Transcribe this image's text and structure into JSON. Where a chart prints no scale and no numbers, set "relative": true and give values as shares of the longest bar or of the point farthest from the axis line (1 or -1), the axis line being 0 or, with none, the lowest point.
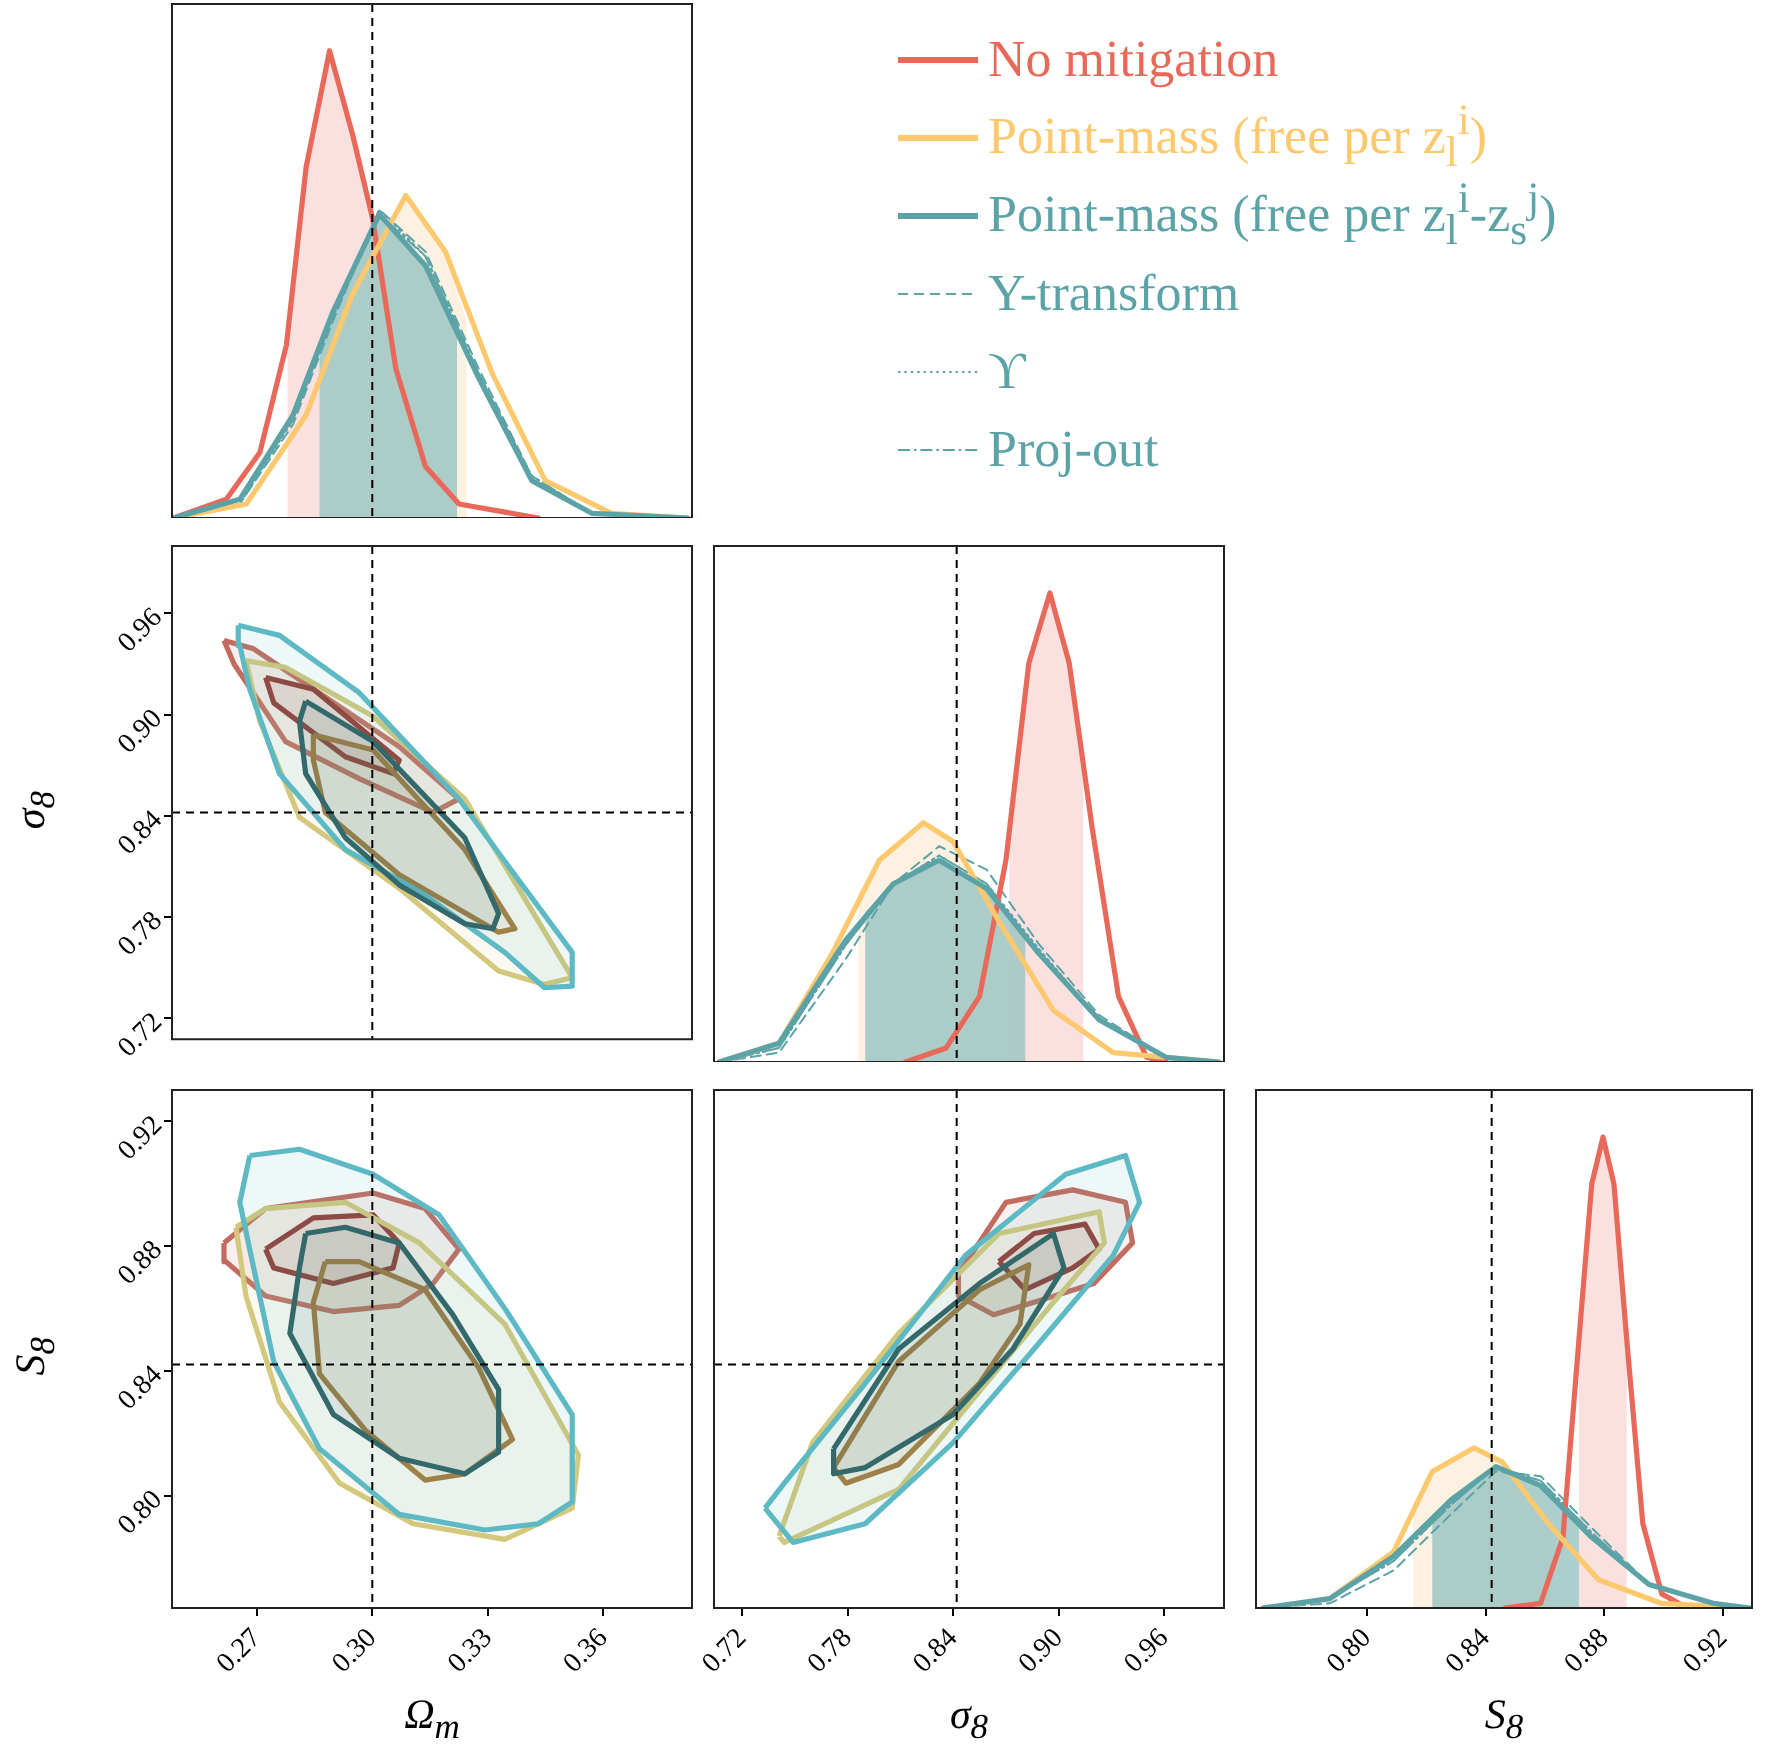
{
  "chart_data": [
    {
      "type": "line",
      "relative": true,
      "xlim": [
        0.248,
        0.383
      ],
      "tick_labels": false,
      "legend": "right",
      "ref_lines": [
        {
          "axis": "x",
          "value": 0.3
        }
      ],
      "series": [
        {
          "type": "area",
          "color": "#f9dcda",
          "x": [
            0.278,
            0.278,
            0.2828,
            0.2889,
            0.2949,
            0.3001,
            0.3001
          ],
          "values": [
            0,
            0.38,
            0.75,
            1,
            0.82,
            0.64,
            0
          ]
        },
        {
          "type": "area",
          "color": "#fdf0dc",
          "x": [
            0.2872,
            0.2872,
            0.2949,
            0.3087,
            0.319,
            0.3245,
            0.3245
          ],
          "values": [
            0,
            0.36,
            0.48,
            0.69,
            0.57,
            0.42,
            0
          ]
        },
        {
          "type": "area",
          "color": "#9dc6c3",
          "x": [
            0.2863,
            0.2863,
            0.2897,
            0.3018,
            0.3138,
            0.322,
            0.322
          ],
          "values": [
            0,
            0.38,
            0.44,
            0.65,
            0.54,
            0.39,
            0
          ]
        },
        {
          "type": "line",
          "name": "No mitigation",
          "color": "#e8695a",
          "x": [
            0.2484,
            0.2621,
            0.2708,
            0.2777,
            0.2828,
            0.2889,
            0.2949,
            0.3001,
            0.3061,
            0.3138,
            0.3225,
            0.3431
          ],
          "values": [
            0,
            0.04,
            0.14,
            0.37,
            0.75,
            1,
            0.82,
            0.64,
            0.32,
            0.11,
            0.03,
            0
          ]
        },
        {
          "type": "line",
          "name": "Point-mass (free per z$_{l}$$^{i}$)",
          "color": "#fdc86e",
          "x": [
            0.2484,
            0.2673,
            0.2828,
            0.2949,
            0.3087,
            0.319,
            0.3311,
            0.3449,
            0.3621,
            0.3819
          ],
          "values": [
            0,
            0.03,
            0.22,
            0.48,
            0.69,
            0.57,
            0.31,
            0.08,
            0.01,
            0
          ]
        },
        {
          "type": "line",
          "name": "Point-mass (free per z$_{l}$$^{i}$-z$_{s}$$^{j}$)",
          "color": "#5ba3a6",
          "x": [
            0.2484,
            0.2656,
            0.2794,
            0.2897,
            0.3018,
            0.3138,
            0.3276,
            0.3414,
            0.357,
            0.3819
          ],
          "values": [
            0,
            0.04,
            0.22,
            0.44,
            0.65,
            0.54,
            0.3,
            0.08,
            0.01,
            0
          ]
        },
        {
          "type": "line",
          "name": "Y-transform",
          "color": "#5ba3a6",
          "line_style": "dashed",
          "x": [
            0.2484,
            0.2656,
            0.2794,
            0.2897,
            0.3018,
            0.3138,
            0.3276,
            0.3414,
            0.357,
            0.3819
          ],
          "values": [
            0,
            0.03,
            0.2,
            0.42,
            0.66,
            0.57,
            0.32,
            0.09,
            0.01,
            0
          ]
        },
        {
          "type": "line",
          "name": "ϒ",
          "color": "#5ba3a6",
          "line_style": "dotted",
          "x": [
            0.2484,
            0.2656,
            0.2794,
            0.2897,
            0.3018,
            0.3138,
            0.3276,
            0.3414,
            0.357,
            0.3819
          ],
          "values": [
            0,
            0.03,
            0.21,
            0.43,
            0.66,
            0.56,
            0.31,
            0.09,
            0.01,
            0
          ]
        },
        {
          "type": "line",
          "name": "Proj-out",
          "color": "#5ba3a6",
          "line_style": "dashdot",
          "x": [
            0.2484,
            0.2656,
            0.2794,
            0.2897,
            0.3018,
            0.3138,
            0.3276,
            0.3414,
            0.357,
            0.3819
          ],
          "values": [
            0,
            0.04,
            0.21,
            0.43,
            0.65,
            0.56,
            0.31,
            0.08,
            0.01,
            0
          ]
        }
      ]
    },
    {
      "type": "line",
      "xlim": [
        0.248,
        0.383
      ],
      "ylim": [
        0.7075,
        1.0
      ],
      "yticks": [
        0.72,
        0.78,
        0.84,
        {
          "value": 0.9,
          "label": "0.90"
        },
        0.96
      ],
      "tick_labels": "y",
      "ylabel": "σ$_{8}$",
      "ref_lines": [
        {
          "axis": "x",
          "value": 0.3
        },
        {
          "axis": "y",
          "value": 0.842
        }
      ],
      "series": [
        {
          "type": "area",
          "color": "#c46a5e",
          "x": [
            0.2615,
            0.2692,
            0.307,
            0.3225,
            0.3158,
            0.2966,
            0.2775,
            0.2641,
            0.2615
          ],
          "values": [
            0.944,
            0.939,
            0.881,
            0.85,
            0.842,
            0.862,
            0.884,
            0.93,
            0.944
          ]
        },
        {
          "type": "area",
          "color": "#8e2f2f",
          "x": [
            0.2723,
            0.2847,
            0.307,
            0.3054,
            0.293,
            0.2744,
            0.2723
          ],
          "values": [
            0.922,
            0.915,
            0.873,
            0.865,
            0.875,
            0.907,
            0.922
          ]
        },
        {
          "type": "area",
          "color": "#d3c87c",
          "x": [
            0.2672,
            0.2775,
            0.3002,
            0.324,
            0.3519,
            0.3447,
            0.3328,
            0.307,
            0.2811,
            0.2708,
            0.2672
          ],
          "values": [
            0.932,
            0.928,
            0.899,
            0.85,
            0.744,
            0.74,
            0.748,
            0.797,
            0.839,
            0.896,
            0.932
          ]
        },
        {
          "type": "area",
          "color": "#a67b3c",
          "x": [
            0.2847,
            0.3002,
            0.324,
            0.337,
            0.3328,
            0.307,
            0.2878,
            0.2847,
            0.2847
          ],
          "values": [
            0.888,
            0.879,
            0.82,
            0.773,
            0.771,
            0.805,
            0.842,
            0.873,
            0.888
          ]
        },
        {
          "type": "area",
          "color": "#5db9c3",
          "x": [
            0.2652,
            0.2759,
            0.2966,
            0.3225,
            0.3344,
            0.3519,
            0.3519,
            0.3447,
            0.3344,
            0.3137,
            0.293,
            0.2759,
            0.2682,
            0.2656,
            0.2652
          ],
          "values": [
            0.953,
            0.947,
            0.913,
            0.85,
            0.813,
            0.759,
            0.739,
            0.738,
            0.759,
            0.793,
            0.82,
            0.865,
            0.915,
            0.941,
            0.953
          ]
        },
        {
          "type": "area",
          "color": "#33696b",
          "x": [
            0.2827,
            0.3002,
            0.324,
            0.3328,
            0.3313,
            0.324,
            0.307,
            0.293,
            0.2827,
            0.2811,
            0.2827
          ],
          "values": [
            0.908,
            0.884,
            0.827,
            0.782,
            0.773,
            0.776,
            0.799,
            0.827,
            0.865,
            0.896,
            0.908
          ]
        }
      ]
    },
    {
      "type": "line",
      "relative": true,
      "xlim": [
        0.704,
        0.994
      ],
      "tick_labels": false,
      "ref_lines": [
        {
          "axis": "x",
          "value": 0.842
        }
      ],
      "series": [
        {
          "type": "area",
          "color": "#f9dcda",
          "x": [
            0.872,
            0.872,
            0.883,
            0.895,
            0.906,
            0.914,
            0.914
          ],
          "values": [
            0,
            0.5,
            0.85,
            1,
            0.85,
            0.6,
            0
          ]
        },
        {
          "type": "area",
          "color": "#fdf0dc",
          "x": [
            0.786,
            0.786,
            0.798,
            0.823,
            0.84,
            0.866,
            0.872,
            0.872
          ],
          "values": [
            0,
            0.36,
            0.43,
            0.51,
            0.47,
            0.3,
            0.27,
            0
          ]
        },
        {
          "type": "area",
          "color": "#9dc6c3",
          "x": [
            0.79,
            0.79,
            0.806,
            0.832,
            0.859,
            0.881,
            0.881
          ],
          "values": [
            0,
            0.32,
            0.38,
            0.43,
            0.37,
            0.27,
            0
          ]
        },
        {
          "type": "line",
          "color": "#e8695a",
          "x": [
            0.813,
            0.836,
            0.855,
            0.87,
            0.883,
            0.895,
            0.906,
            0.919,
            0.934,
            0.95,
            0.961
          ],
          "values": [
            0,
            0.03,
            0.14,
            0.43,
            0.85,
            1,
            0.85,
            0.5,
            0.14,
            0.01,
            0
          ]
        },
        {
          "type": "line",
          "color": "#fdc86e",
          "x": [
            0.707,
            0.741,
            0.771,
            0.798,
            0.823,
            0.84,
            0.866,
            0.897,
            0.931,
            0.991
          ],
          "values": [
            0,
            0.04,
            0.23,
            0.43,
            0.51,
            0.47,
            0.3,
            0.11,
            0.02,
            0
          ]
        },
        {
          "type": "line",
          "color": "#5ba3a6",
          "x": [
            0.707,
            0.741,
            0.779,
            0.806,
            0.832,
            0.859,
            0.889,
            0.923,
            0.961,
            0.991
          ],
          "values": [
            0,
            0.04,
            0.26,
            0.38,
            0.43,
            0.37,
            0.23,
            0.09,
            0.01,
            0
          ]
        },
        {
          "type": "line",
          "color": "#5ba3a6",
          "line_style": "dashed",
          "x": [
            0.707,
            0.741,
            0.779,
            0.806,
            0.832,
            0.859,
            0.889,
            0.923,
            0.961,
            0.991
          ],
          "values": [
            0,
            0.02,
            0.22,
            0.38,
            0.46,
            0.41,
            0.25,
            0.1,
            0.01,
            0
          ]
        },
        {
          "type": "line",
          "color": "#5ba3a6",
          "line_style": "dotted",
          "x": [
            0.707,
            0.741,
            0.779,
            0.806,
            0.832,
            0.859,
            0.889,
            0.923,
            0.961,
            0.991
          ],
          "values": [
            0,
            0.03,
            0.25,
            0.38,
            0.44,
            0.38,
            0.24,
            0.09,
            0.01,
            0
          ]
        },
        {
          "type": "line",
          "color": "#5ba3a6",
          "line_style": "dashdot",
          "x": [
            0.707,
            0.741,
            0.779,
            0.806,
            0.832,
            0.859,
            0.889,
            0.923,
            0.961,
            0.991
          ],
          "values": [
            0,
            0.03,
            0.25,
            0.38,
            0.44,
            0.38,
            0.23,
            0.09,
            0.01,
            0
          ]
        }
      ]
    },
    {
      "type": "line",
      "xlim": [
        0.248,
        0.383
      ],
      "xticks": [
        0.27,
        {
          "value": 0.3,
          "label": "0.30"
        },
        0.33,
        0.36
      ],
      "ylim": [
        0.764,
        0.93
      ],
      "yticks": [
        {
          "value": 0.8,
          "label": "0.80"
        },
        0.84,
        0.88,
        0.92
      ],
      "xlabel": "Ω$_{m}$",
      "ylabel": "S$_{8}$",
      "ref_lines": [
        {
          "axis": "x",
          "value": 0.3
        },
        {
          "axis": "y",
          "value": 0.842
        }
      ],
      "series": [
        {
          "type": "area",
          "color": "#c46a5e",
          "x": [
            0.2615,
            0.2723,
            0.3002,
            0.3137,
            0.3225,
            0.3158,
            0.307,
            0.2899,
            0.2723,
            0.262,
            0.2615
          ],
          "values": [
            0.881,
            0.892,
            0.897,
            0.892,
            0.879,
            0.868,
            0.861,
            0.859,
            0.864,
            0.875,
            0.881
          ]
        },
        {
          "type": "area",
          "color": "#8e2f2f",
          "x": [
            0.2723,
            0.2847,
            0.3002,
            0.307,
            0.3054,
            0.2899,
            0.2744,
            0.2723
          ],
          "values": [
            0.879,
            0.889,
            0.89,
            0.881,
            0.873,
            0.868,
            0.873,
            0.879
          ]
        },
        {
          "type": "area",
          "color": "#d3c87c",
          "x": [
            0.2646,
            0.2723,
            0.293,
            0.3122,
            0.3344,
            0.3535,
            0.3519,
            0.3344,
            0.3106,
            0.2915,
            0.2759,
            0.2672,
            0.2646
          ],
          "values": [
            0.886,
            0.892,
            0.894,
            0.881,
            0.855,
            0.813,
            0.796,
            0.786,
            0.791,
            0.804,
            0.83,
            0.864,
            0.886
          ]
        },
        {
          "type": "area",
          "color": "#a67b3c",
          "x": [
            0.2878,
            0.2966,
            0.3137,
            0.3276,
            0.3364,
            0.324,
            0.3137,
            0.2982,
            0.2863,
            0.2847,
            0.2878
          ],
          "values": [
            0.875,
            0.875,
            0.866,
            0.841,
            0.818,
            0.807,
            0.805,
            0.821,
            0.839,
            0.862,
            0.875
          ]
        },
        {
          "type": "area",
          "color": "#5db9c3",
          "x": [
            0.2682,
            0.2811,
            0.3002,
            0.3173,
            0.3344,
            0.3519,
            0.3519,
            0.3431,
            0.3292,
            0.307,
            0.2863,
            0.2744,
            0.2692,
            0.2656,
            0.2682
          ],
          "values": [
            0.909,
            0.911,
            0.903,
            0.89,
            0.86,
            0.826,
            0.798,
            0.791,
            0.789,
            0.794,
            0.815,
            0.843,
            0.873,
            0.894,
            0.909
          ]
        },
        {
          "type": "area",
          "color": "#33696b",
          "x": [
            0.2827,
            0.293,
            0.307,
            0.3209,
            0.3328,
            0.3328,
            0.324,
            0.307,
            0.2899,
            0.2786,
            0.2811,
            0.2827
          ],
          "values": [
            0.884,
            0.886,
            0.881,
            0.858,
            0.834,
            0.814,
            0.807,
            0.812,
            0.826,
            0.852,
            0.873,
            0.884
          ]
        }
      ]
    },
    {
      "type": "line",
      "xlim": [
        0.704,
        0.994
      ],
      "xticks": [
        0.72,
        0.78,
        0.84,
        {
          "value": 0.9,
          "label": "0.90"
        },
        0.96
      ],
      "ylim": [
        0.764,
        0.93
      ],
      "tick_labels": "x",
      "xlabel": "σ$_{8}$",
      "ref_lines": [
        {
          "axis": "x",
          "value": 0.842
        },
        {
          "axis": "y",
          "value": 0.842
        }
      ],
      "series": [
        {
          "type": "area",
          "color": "#c46a5e",
          "x": [
            0.843,
            0.87,
            0.908,
            0.938,
            0.942,
            0.92,
            0.892,
            0.863,
            0.843,
            0.843
          ],
          "values": [
            0.871,
            0.894,
            0.898,
            0.894,
            0.881,
            0.868,
            0.863,
            0.858,
            0.864,
            0.871
          ]
        },
        {
          "type": "area",
          "color": "#8e2f2f",
          "x": [
            0.866,
            0.886,
            0.915,
            0.923,
            0.908,
            0.881,
            0.866
          ],
          "values": [
            0.875,
            0.884,
            0.887,
            0.879,
            0.873,
            0.866,
            0.875
          ]
        },
        {
          "type": "area",
          "color": "#d3c87c",
          "x": [
            0.741,
            0.76,
            0.809,
            0.866,
            0.923,
            0.926,
            0.897,
            0.866,
            0.809,
            0.744,
            0.741
          ],
          "values": [
            0.787,
            0.817,
            0.852,
            0.884,
            0.891,
            0.881,
            0.862,
            0.841,
            0.802,
            0.785,
            0.787
          ]
        },
        {
          "type": "area",
          "color": "#a67b3c",
          "x": [
            0.772,
            0.809,
            0.855,
            0.883,
            0.878,
            0.855,
            0.809,
            0.779,
            0.772
          ],
          "values": [
            0.809,
            0.843,
            0.866,
            0.874,
            0.855,
            0.836,
            0.81,
            0.804,
            0.809
          ]
        },
        {
          "type": "area",
          "color": "#5db9c3",
          "x": [
            0.733,
            0.744,
            0.79,
            0.847,
            0.904,
            0.938,
            0.946,
            0.931,
            0.886,
            0.84,
            0.79,
            0.749,
            0.733
          ],
          "values": [
            0.796,
            0.804,
            0.836,
            0.877,
            0.903,
            0.909,
            0.894,
            0.877,
            0.847,
            0.817,
            0.791,
            0.785,
            0.796
          ]
        },
        {
          "type": "area",
          "color": "#33696b",
          "x": [
            0.772,
            0.809,
            0.855,
            0.897,
            0.903,
            0.874,
            0.84,
            0.79,
            0.772,
            0.772
          ],
          "values": [
            0.815,
            0.847,
            0.868,
            0.884,
            0.873,
            0.847,
            0.826,
            0.809,
            0.807,
            0.815
          ]
        }
      ]
    },
    {
      "type": "line",
      "relative": true,
      "xlim": [
        0.7626,
        0.9297
      ],
      "xticks": [
        {
          "value": 0.8,
          "label": "0.80"
        },
        0.84,
        0.88,
        0.92
      ],
      "tick_labels": "x",
      "xlabel": "S$_{8}$",
      "ref_lines": [
        {
          "axis": "x",
          "value": 0.842
        }
      ],
      "series": [
        {
          "type": "area",
          "color": "#f9dcda",
          "x": [
            0.8714,
            0.8714,
            0.8757,
            0.8795,
            0.8832,
            0.8875,
            0.8875
          ],
          "values": [
            0,
            0.57,
            0.9,
            1,
            0.9,
            0.57,
            0
          ]
        },
        {
          "type": "area",
          "color": "#fdf0dc",
          "x": [
            0.8155,
            0.8155,
            0.822,
            0.836,
            0.8456,
            0.8624,
            0.8624
          ],
          "values": [
            0,
            0.22,
            0.29,
            0.34,
            0.31,
            0.17,
            0
          ]
        },
        {
          "type": "area",
          "color": "#9dc6c3",
          "x": [
            0.822,
            0.822,
            0.8284,
            0.8434,
            0.8585,
            0.8714,
            0.8714
          ],
          "values": [
            0,
            0.19,
            0.23,
            0.3,
            0.26,
            0.17,
            0
          ]
        },
        {
          "type": "line",
          "color": "#e8695a",
          "x": [
            0.8466,
            0.8585,
            0.866,
            0.8714,
            0.8757,
            0.8795,
            0.8832,
            0.8875,
            0.8929,
            0.8993,
            0.9079
          ],
          "values": [
            0,
            0.01,
            0.15,
            0.57,
            0.9,
            1,
            0.9,
            0.57,
            0.18,
            0.03,
            0
          ]
        },
        {
          "type": "line",
          "color": "#fdc86e",
          "x": [
            0.765,
            0.7875,
            0.809,
            0.822,
            0.836,
            0.8456,
            0.861,
            0.878,
            0.899,
            0.929
          ],
          "values": [
            0,
            0.02,
            0.12,
            0.29,
            0.34,
            0.31,
            0.18,
            0.06,
            0.01,
            0
          ]
        },
        {
          "type": "line",
          "color": "#5ba3a6",
          "x": [
            0.765,
            0.7875,
            0.809,
            0.8284,
            0.8434,
            0.8585,
            0.8757,
            0.895,
            0.9166,
            0.929
          ],
          "values": [
            0,
            0.02,
            0.11,
            0.23,
            0.3,
            0.26,
            0.15,
            0.05,
            0.01,
            0
          ]
        },
        {
          "type": "line",
          "color": "#5ba3a6",
          "line_style": "dashed",
          "x": [
            0.765,
            0.7875,
            0.809,
            0.8284,
            0.8434,
            0.8585,
            0.8757,
            0.895,
            0.9166,
            0.929
          ],
          "values": [
            0,
            0.01,
            0.08,
            0.2,
            0.29,
            0.28,
            0.17,
            0.05,
            0.01,
            0
          ]
        },
        {
          "type": "line",
          "color": "#5ba3a6",
          "line_style": "dotted",
          "x": [
            0.765,
            0.7875,
            0.809,
            0.8284,
            0.8434,
            0.8585,
            0.8757,
            0.895,
            0.9166,
            0.929
          ],
          "values": [
            0,
            0.02,
            0.1,
            0.22,
            0.3,
            0.27,
            0.16,
            0.05,
            0.01,
            0
          ]
        },
        {
          "type": "line",
          "color": "#5ba3a6",
          "line_style": "dashdot",
          "x": [
            0.765,
            0.7875,
            0.809,
            0.8284,
            0.8434,
            0.8585,
            0.8757,
            0.895,
            0.9166,
            0.929
          ],
          "values": [
            0,
            0.02,
            0.1,
            0.22,
            0.3,
            0.27,
            0.16,
            0.05,
            0.01,
            0
          ]
        }
      ]
    }
  ]
}
